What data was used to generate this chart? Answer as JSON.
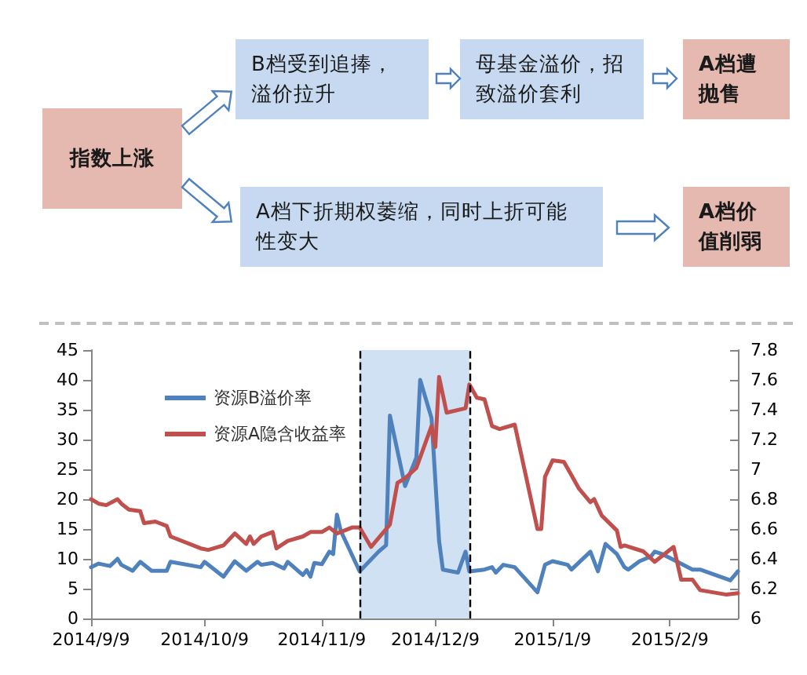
{
  "chart_data": [
    {
      "type": "other",
      "annotations": [
        "指数上涨",
        "B档受到追捧，溢价拉升",
        "母基金溢价，招致溢价套利",
        "A档遭抛售",
        "A档下折期权萎缩，同时上折可能性变大",
        "A档价值削弱"
      ]
    },
    {
      "type": "line",
      "xlim": [
        "2014-09-09",
        "2015-02-27"
      ],
      "xticks": [
        {
          "value": "2014-09-09",
          "label": "2014/9/9"
        },
        {
          "value": "2014-10-09",
          "label": "2014/10/9"
        },
        {
          "value": "2014-11-09",
          "label": "2014/11/9"
        },
        {
          "value": "2014-12-09",
          "label": "2014/12/9"
        },
        {
          "value": "2015-01-09",
          "label": "2015/1/9"
        },
        {
          "value": "2015-02-09",
          "label": "2015/2/9"
        }
      ],
      "ylim": [
        0,
        45
      ],
      "yticks": [
        0,
        5,
        10,
        15,
        20,
        25,
        30,
        35,
        40,
        45
      ],
      "y2lim": [
        6,
        7.8
      ],
      "y2ticks": [
        6,
        6.2,
        6.4,
        6.6,
        6.8,
        7,
        7.2,
        7.4,
        7.6,
        7.8
      ],
      "legend": "top left",
      "grid": false,
      "marker": "none",
      "line_style": "solid",
      "bands": [
        {
          "axis": "x",
          "from": "2014-11-19",
          "to": "2014-12-18",
          "color": "#c6d9f1"
        }
      ],
      "ref_lines": [
        {
          "axis": "x",
          "value": "2014-11-19",
          "line_style": "dashed",
          "color": "#000000"
        },
        {
          "axis": "x",
          "value": "2014-12-18",
          "line_style": "dashed",
          "color": "#000000"
        }
      ],
      "series": [
        {
          "name": "资源B溢价率",
          "color": "#4f81bd",
          "x": [
            "2014-09-09",
            "2014-09-11",
            "2014-09-14",
            "2014-09-16",
            "2014-09-17",
            "2014-09-20",
            "2014-09-22",
            "2014-09-25",
            "2014-09-29",
            "2014-09-30",
            "2014-10-08",
            "2014-10-09",
            "2014-10-14",
            "2014-10-17",
            "2014-10-20",
            "2014-10-23",
            "2014-10-24",
            "2014-10-27",
            "2014-10-30",
            "2014-10-31",
            "2014-11-04",
            "2014-11-05",
            "2014-11-06",
            "2014-11-07",
            "2014-11-09",
            "2014-11-11",
            "2014-11-12",
            "2014-11-13",
            "2014-11-14",
            "2014-11-19",
            "2014-11-24",
            "2014-11-26",
            "2014-11-27",
            "2014-12-01",
            "2014-12-04",
            "2014-12-05",
            "2014-12-08",
            "2014-12-10",
            "2014-12-11",
            "2014-12-15",
            "2014-12-17",
            "2014-12-18",
            "2014-12-22",
            "2014-12-24",
            "2014-12-25",
            "2014-12-27",
            "2014-12-30",
            "2015-01-05",
            "2015-01-07",
            "2015-01-09",
            "2015-01-13",
            "2015-01-14",
            "2015-01-19",
            "2015-01-21",
            "2015-01-23",
            "2015-01-26",
            "2015-01-28",
            "2015-01-29",
            "2015-02-01",
            "2015-02-04",
            "2015-02-05",
            "2015-02-07",
            "2015-02-11",
            "2015-02-15",
            "2015-02-17",
            "2015-02-25",
            "2015-02-27"
          ],
          "values": [
            8.6,
            9.2,
            8.8,
            10,
            9,
            8,
            9.5,
            8,
            8,
            9.5,
            8.6,
            9.5,
            7,
            9.6,
            8,
            9.5,
            9,
            9.3,
            8.4,
            9.5,
            7.3,
            8.1,
            7,
            9.3,
            9.1,
            11.2,
            10.8,
            17.4,
            14.7,
            7.9,
            11.2,
            12.3,
            34,
            22.2,
            27,
            40,
            33.6,
            13,
            8.2,
            7.7,
            11.2,
            7.9,
            8.2,
            8.6,
            7.7,
            9,
            8.6,
            4.4,
            9,
            9.6,
            9,
            8.2,
            11.2,
            7.9,
            12.5,
            10.8,
            8.6,
            8.2,
            9.6,
            10.4,
            11.2,
            10.8,
            9.5,
            8.2,
            8.2,
            6.4,
            7.9
          ]
        },
        {
          "name": "资源A隐含收益率",
          "color": "#c0504d",
          "axis": "y2",
          "x": [
            "2014-09-09",
            "2014-09-11",
            "2014-09-13",
            "2014-09-16",
            "2014-09-17",
            "2014-09-19",
            "2014-09-22",
            "2014-09-23",
            "2014-09-26",
            "2014-09-29",
            "2014-09-30",
            "2014-10-08",
            "2014-10-10",
            "2014-10-14",
            "2014-10-17",
            "2014-10-20",
            "2014-10-21",
            "2014-10-22",
            "2014-10-24",
            "2014-10-27",
            "2014-10-28",
            "2014-10-31",
            "2014-11-04",
            "2014-11-06",
            "2014-11-09",
            "2014-11-11",
            "2014-11-13",
            "2014-11-17",
            "2014-11-19",
            "2014-11-22",
            "2014-11-27",
            "2014-11-29",
            "2014-12-01",
            "2014-12-04",
            "2014-12-08",
            "2014-12-09",
            "2014-12-10",
            "2014-12-12",
            "2014-12-17",
            "2014-12-18",
            "2014-12-20",
            "2014-12-22",
            "2014-12-24",
            "2014-12-26",
            "2014-12-30",
            "2015-01-05",
            "2015-01-06",
            "2015-01-07",
            "2015-01-09",
            "2015-01-12",
            "2015-01-14",
            "2015-01-16",
            "2015-01-19",
            "2015-01-20",
            "2015-01-22",
            "2015-01-26",
            "2015-01-27",
            "2015-01-28",
            "2015-02-02",
            "2015-02-05",
            "2015-02-10",
            "2015-02-12",
            "2015-02-15",
            "2015-02-17",
            "2015-02-24",
            "2015-02-27"
          ],
          "values": [
            6.8,
            6.77,
            6.76,
            6.8,
            6.77,
            6.73,
            6.72,
            6.64,
            6.65,
            6.62,
            6.55,
            6.47,
            6.46,
            6.49,
            6.57,
            6.5,
            6.55,
            6.5,
            6.55,
            6.58,
            6.47,
            6.52,
            6.55,
            6.58,
            6.58,
            6.61,
            6.57,
            6.61,
            6.61,
            6.48,
            6.63,
            6.91,
            6.94,
            7.01,
            7.29,
            7.15,
            7.62,
            7.38,
            7.41,
            7.57,
            7.48,
            7.47,
            7.29,
            7.27,
            7.3,
            6.6,
            6.6,
            6.95,
            7.06,
            7.05,
            6.96,
            6.87,
            6.78,
            6.8,
            6.69,
            6.59,
            6.48,
            6.49,
            6.45,
            6.38,
            6.48,
            6.26,
            6.26,
            6.19,
            6.16,
            6.17
          ]
        }
      ]
    }
  ]
}
